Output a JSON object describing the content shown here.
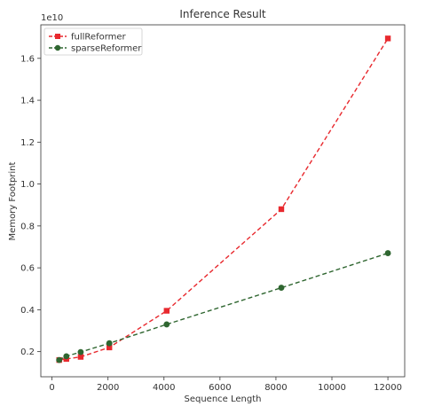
{
  "chart_data": {
    "type": "line",
    "title": "Inference Result",
    "xlabel": "Sequence Length",
    "ylabel": "Memory Footprint",
    "y_offset_label": "1e10",
    "xlim": [
      -400,
      12600
    ],
    "ylim": [
      0.08,
      1.76
    ],
    "x_ticks": [
      0,
      2000,
      4000,
      6000,
      8000,
      10000,
      12000
    ],
    "x_tick_labels": [
      "0",
      "2000",
      "4000",
      "6000",
      "8000",
      "10000",
      "12000"
    ],
    "y_ticks": [
      0.2,
      0.4,
      0.6,
      0.8,
      1.0,
      1.2,
      1.4,
      1.6
    ],
    "y_tick_labels": [
      "0.2",
      "0.4",
      "0.6",
      "0.8",
      "1.0",
      "1.2",
      "1.4",
      "1.6"
    ],
    "grid": false,
    "legend_position": "top-left",
    "x": [
      256,
      512,
      1024,
      2048,
      4096,
      8192,
      12000
    ],
    "series": [
      {
        "name": "fullReformer",
        "color": "#e8292e",
        "marker": "square",
        "style": "dashed",
        "values": [
          0.16,
          0.165,
          0.175,
          0.22,
          0.395,
          0.88,
          1.695
        ]
      },
      {
        "name": "sparseReformer",
        "color": "#2f6630",
        "marker": "circle",
        "style": "dashed",
        "values": [
          0.16,
          0.178,
          0.198,
          0.24,
          0.33,
          0.505,
          0.67
        ]
      }
    ]
  }
}
